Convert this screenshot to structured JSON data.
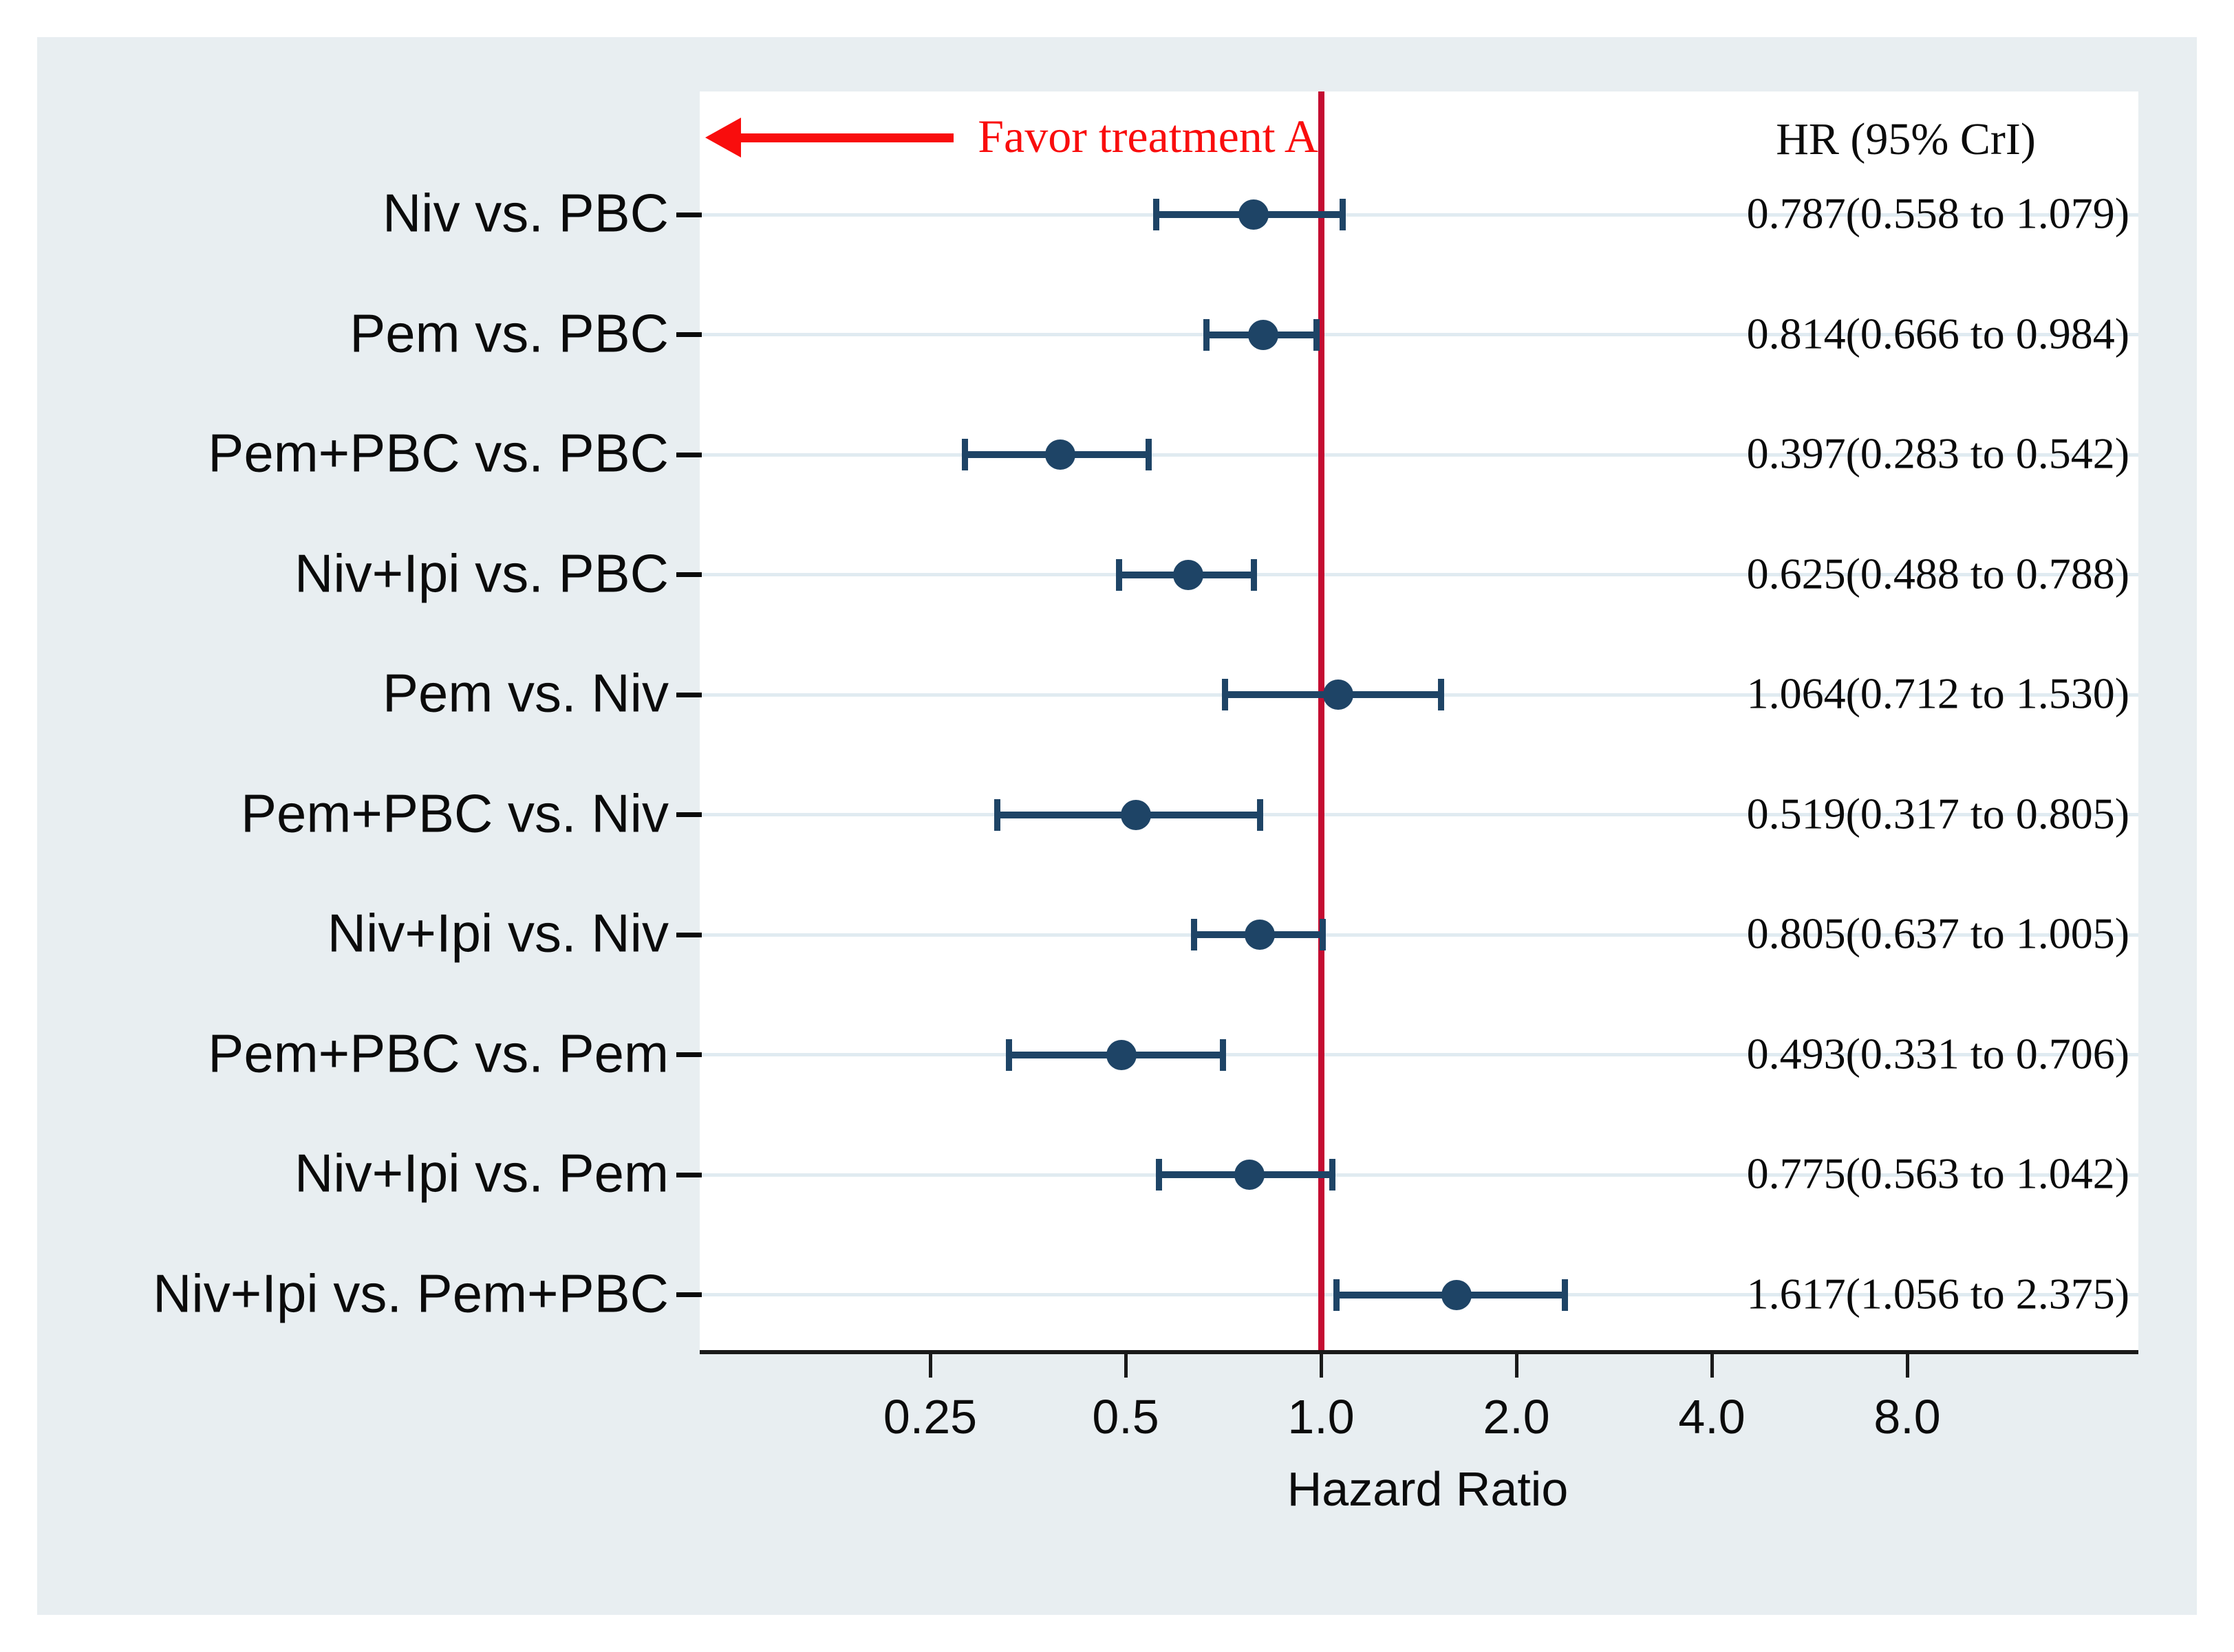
{
  "chart_data": {
    "type": "forest",
    "title": "",
    "xlabel": "Hazard Ratio",
    "column_header": "HR (95% CrI)",
    "annotation": "Favor treatment A",
    "x_scale": "log2",
    "reference_line": 1.0,
    "x_tick_values": [
      0.25,
      0.5,
      1.0,
      2.0,
      4.0,
      8.0
    ],
    "x_tick_labels": [
      "0.25",
      "0.5",
      "1.0",
      "2.0",
      "4.0",
      "8.0"
    ],
    "x_range_approx": [
      0.11,
      18
    ],
    "grid": "horizontal-row-guides",
    "legend": "none",
    "rows": [
      {
        "comparison": "Niv vs. PBC",
        "hr": 0.787,
        "lower": 0.558,
        "upper": 1.079,
        "text": "0.787(0.558 to 1.079)"
      },
      {
        "comparison": "Pem vs. PBC",
        "hr": 0.814,
        "lower": 0.666,
        "upper": 0.984,
        "text": "0.814(0.666 to 0.984)"
      },
      {
        "comparison": "Pem+PBC vs. PBC",
        "hr": 0.397,
        "lower": 0.283,
        "upper": 0.542,
        "text": "0.397(0.283 to 0.542)"
      },
      {
        "comparison": "Niv+Ipi vs. PBC",
        "hr": 0.625,
        "lower": 0.488,
        "upper": 0.788,
        "text": "0.625(0.488 to 0.788)"
      },
      {
        "comparison": "Pem vs. Niv",
        "hr": 1.064,
        "lower": 0.712,
        "upper": 1.53,
        "text": "1.064(0.712 to 1.530)"
      },
      {
        "comparison": "Pem+PBC vs. Niv",
        "hr": 0.519,
        "lower": 0.317,
        "upper": 0.805,
        "text": "0.519(0.317 to 0.805)"
      },
      {
        "comparison": "Niv+Ipi vs. Niv",
        "hr": 0.805,
        "lower": 0.637,
        "upper": 1.005,
        "text": "0.805(0.637 to 1.005)"
      },
      {
        "comparison": "Pem+PBC vs. Pem",
        "hr": 0.493,
        "lower": 0.331,
        "upper": 0.706,
        "text": "0.493(0.331 to 0.706)"
      },
      {
        "comparison": "Niv+Ipi vs. Pem",
        "hr": 0.775,
        "lower": 0.563,
        "upper": 1.042,
        "text": "0.775(0.563 to 1.042)"
      },
      {
        "comparison": "Niv+Ipi vs. Pem+PBC",
        "hr": 1.617,
        "lower": 1.056,
        "upper": 2.375,
        "text": "1.617(1.056 to 2.375)"
      }
    ],
    "colors": {
      "marker": "#1e4466",
      "reference_line": "#c40d32",
      "annotation_red": "#f90d0d",
      "panel_background": "#e8eef1",
      "plot_background": "#ffffff",
      "row_guide": "#e0ebf1",
      "axis": "#1a1a1a",
      "text": "#0b0b0b"
    }
  }
}
